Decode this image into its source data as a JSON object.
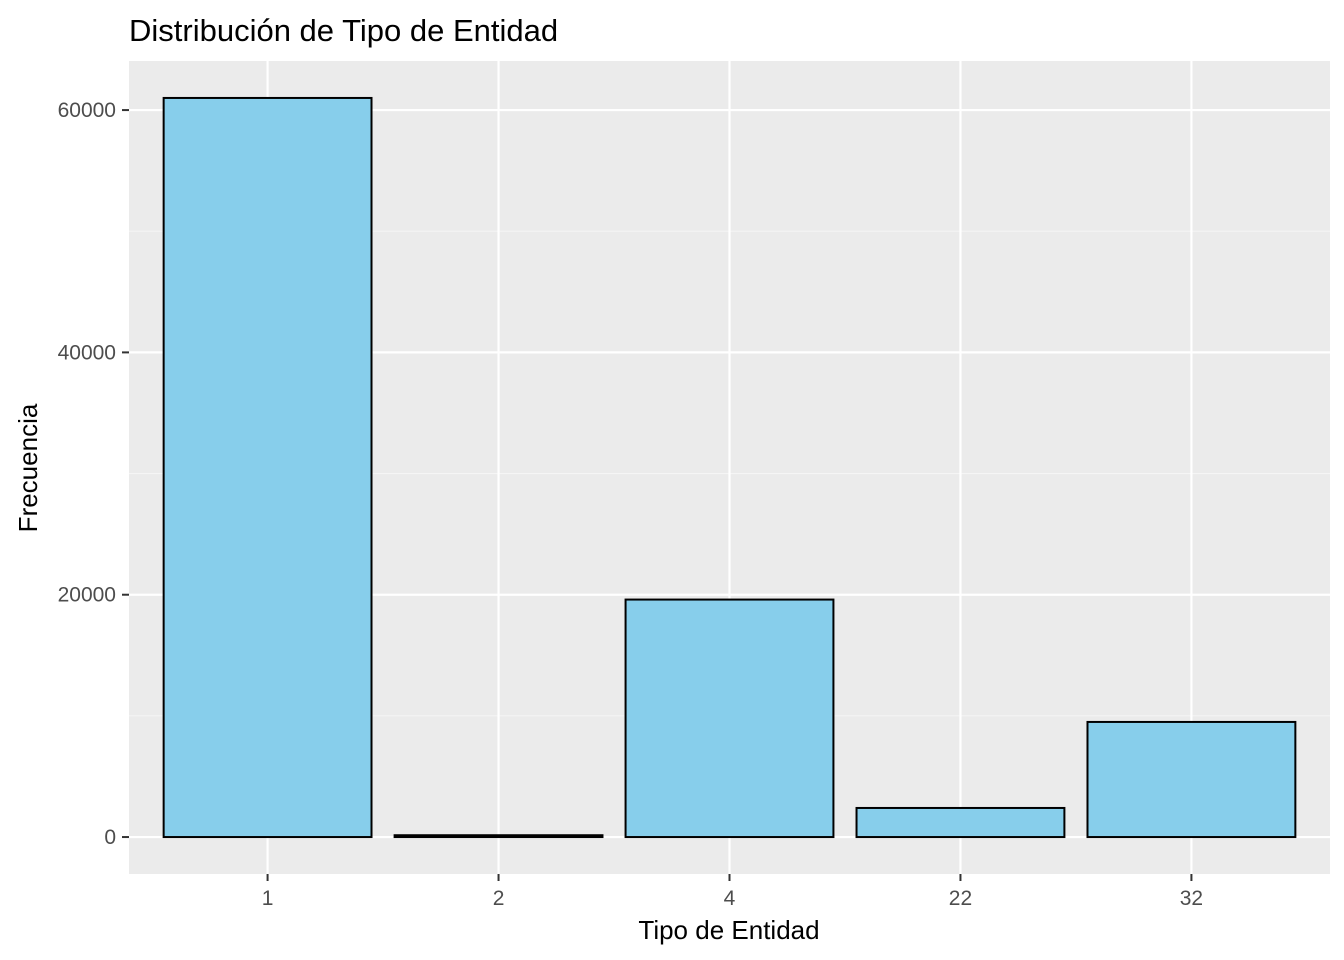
{
  "chart_data": {
    "type": "bar",
    "title": "Distribución de Tipo de Entidad",
    "xlabel": "Tipo de Entidad",
    "ylabel": "Frecuencia",
    "categories": [
      "1",
      "2",
      "4",
      "22",
      "32"
    ],
    "values": [
      61000,
      150,
      19600,
      2400,
      9500
    ],
    "ylim": [
      -3050,
      64050
    ],
    "yticks": [
      0,
      20000,
      40000,
      60000
    ],
    "ytick_labels": [
      "0",
      "20000",
      "40000",
      "60000"
    ],
    "grid": true,
    "legend": "none",
    "colors": {
      "bar_fill": "#87CEEB",
      "bar_stroke": "#000000",
      "panel_background": "#EBEBEB",
      "grid_major": "#FFFFFF",
      "grid_minor": "#F5F5F5",
      "tick_text": "#4D4D4D"
    }
  }
}
